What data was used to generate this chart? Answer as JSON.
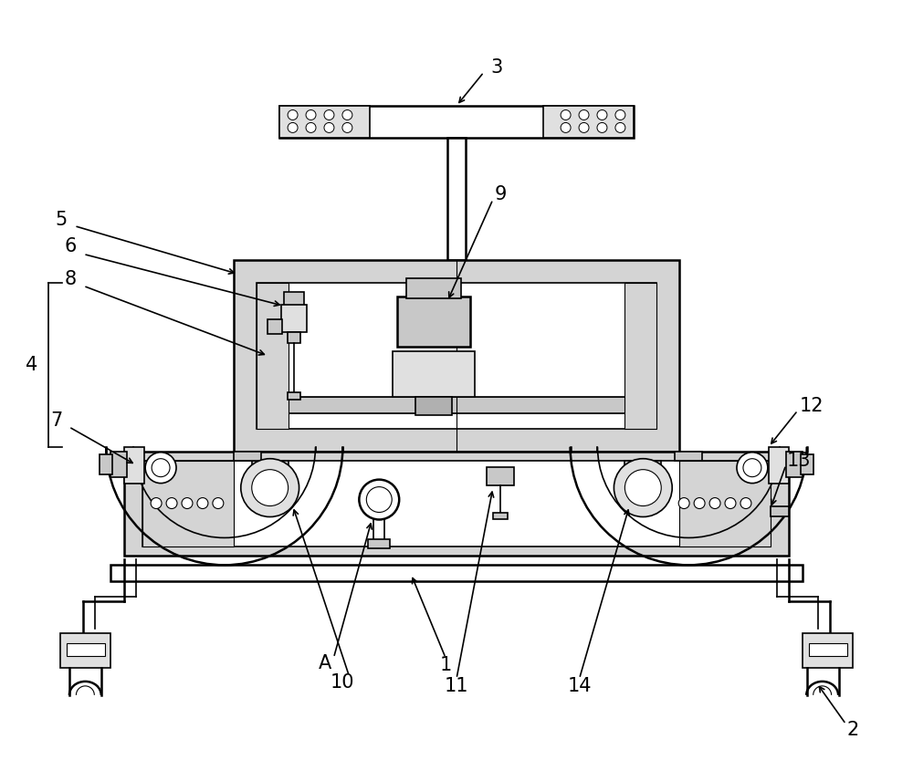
{
  "background_color": "#ffffff",
  "figsize": [
    10.0,
    8.33
  ],
  "dpi": 100,
  "label_fontsize": 15,
  "line_color": "#000000",
  "gray1": "#e0e0e0",
  "gray2": "#c8c8c8",
  "gray3": "#b0b0b0",
  "dotgray": "#d4d4d4"
}
